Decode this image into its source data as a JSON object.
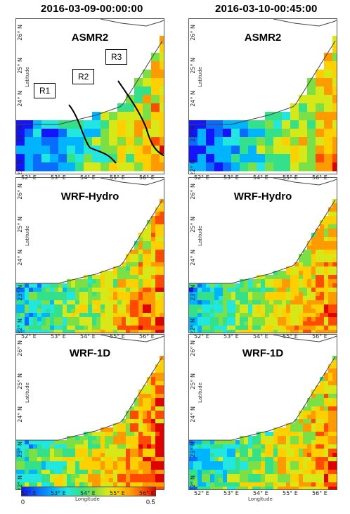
{
  "columns": [
    {
      "time": "2016-03-09-00:00:00"
    },
    {
      "time": "2016-03-10-00:45:00"
    }
  ],
  "rows": [
    {
      "label": "ASMR2"
    },
    {
      "label": "WRF-Hydro"
    },
    {
      "label": "WRF-1D"
    }
  ],
  "axes": {
    "lat_ticks": [
      "22° N",
      "23° N",
      "24° N",
      "25° N",
      "26° N"
    ],
    "lon_ticks": [
      "52° E",
      "53° E",
      "54° E",
      "55° E",
      "56° E"
    ],
    "lat_word": "Latitude",
    "lon_word": "Longitude"
  },
  "regions": [
    "R1",
    "R2",
    "R3"
  ],
  "colorbar": {
    "min": "0",
    "max": "0.5"
  },
  "palette": [
    "#1414ff",
    "#0a6cff",
    "#00b4ff",
    "#22e6e0",
    "#34e08a",
    "#7be046",
    "#d7e818",
    "#ffd000",
    "#ff9a00",
    "#ff4a00",
    "#e00000"
  ]
}
